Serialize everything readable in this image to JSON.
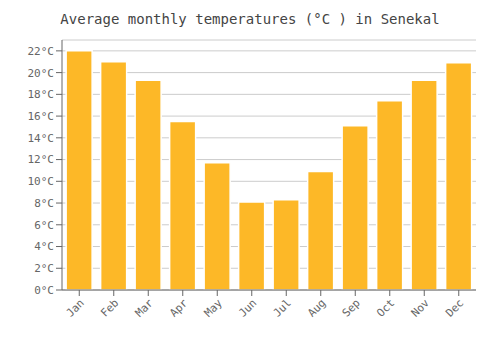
{
  "chart_data": {
    "type": "bar",
    "title": "Average monthly temperatures (°C ) in Senekal",
    "categories": [
      "Jan",
      "Feb",
      "Mar",
      "Apr",
      "May",
      "Jun",
      "Jul",
      "Aug",
      "Sep",
      "Oct",
      "Nov",
      "Dec"
    ],
    "values": [
      22.0,
      21.0,
      19.3,
      15.5,
      11.7,
      8.1,
      8.3,
      10.9,
      15.1,
      17.4,
      19.3,
      20.9
    ],
    "color": "#FDB827",
    "ylim": [
      0,
      23
    ],
    "yticks": [
      {
        "value": 0,
        "label": "0°C"
      },
      {
        "value": 2,
        "label": "2°C"
      },
      {
        "value": 4,
        "label": "4°C"
      },
      {
        "value": 6,
        "label": "6°C"
      },
      {
        "value": 8,
        "label": "8°C"
      },
      {
        "value": 10,
        "label": "10°C"
      },
      {
        "value": 12,
        "label": "12°C"
      },
      {
        "value": 14,
        "label": "14°C"
      },
      {
        "value": 16,
        "label": "16°C"
      },
      {
        "value": 18,
        "label": "18°C"
      },
      {
        "value": 20,
        "label": "20°C"
      },
      {
        "value": 22,
        "label": "22°C"
      }
    ],
    "grid": true
  }
}
